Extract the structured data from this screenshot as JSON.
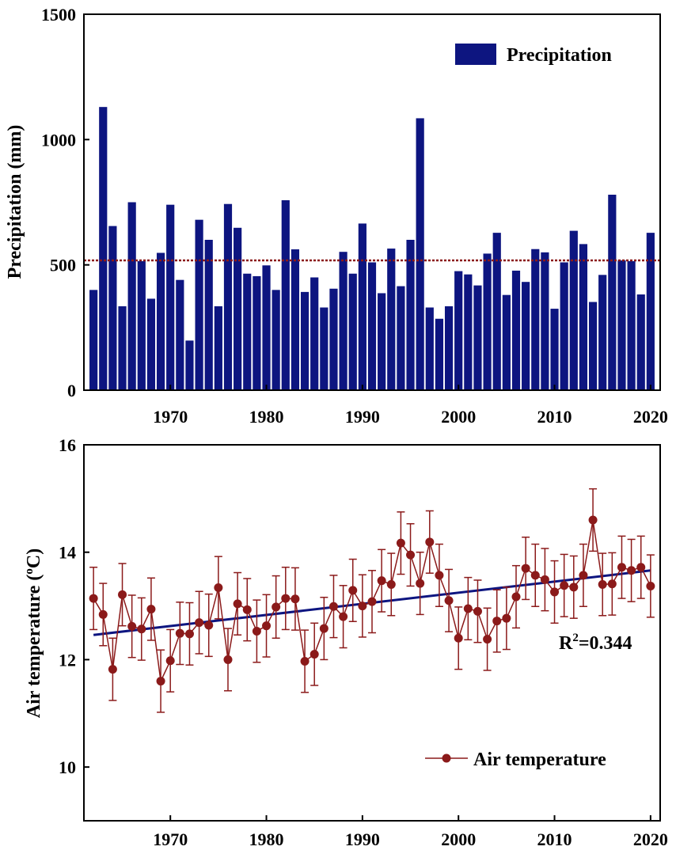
{
  "chart_data": [
    {
      "type": "bar",
      "ylabel": "Precipitation (mm)",
      "ylim": [
        0,
        1500
      ],
      "yticks": [
        "0",
        "500",
        "1000",
        "1500"
      ],
      "xticks": [
        "1970",
        "1980",
        "1990",
        "2000",
        "2010",
        "2020"
      ],
      "xlim": [
        1961,
        2021
      ],
      "legend": {
        "label": "Precipitation",
        "position": "top-right"
      },
      "mean_line": 518,
      "colors": {
        "bar": "#0d1580",
        "mean_line": "#8b1a1a"
      },
      "x": [
        1962,
        1963,
        1964,
        1965,
        1966,
        1967,
        1968,
        1969,
        1970,
        1971,
        1972,
        1973,
        1974,
        1975,
        1976,
        1977,
        1978,
        1979,
        1980,
        1981,
        1982,
        1983,
        1984,
        1985,
        1986,
        1987,
        1988,
        1989,
        1990,
        1991,
        1992,
        1993,
        1994,
        1995,
        1996,
        1997,
        1998,
        1999,
        2000,
        2001,
        2002,
        2003,
        2004,
        2005,
        2006,
        2007,
        2008,
        2009,
        2010,
        2011,
        2012,
        2013,
        2014,
        2015,
        2016,
        2017,
        2018,
        2019,
        2020
      ],
      "values": [
        400,
        1130,
        655,
        335,
        750,
        515,
        365,
        548,
        740,
        440,
        198,
        680,
        600,
        335,
        743,
        648,
        465,
        455,
        498,
        400,
        758,
        562,
        392,
        450,
        330,
        405,
        552,
        465,
        665,
        510,
        387,
        565,
        415,
        600,
        1085,
        330,
        285,
        335,
        475,
        462,
        418,
        545,
        628,
        380,
        477,
        432,
        563,
        550,
        325,
        510,
        636,
        583,
        352,
        460,
        780,
        518,
        515,
        382,
        628
      ]
    },
    {
      "type": "line",
      "ylabel": "Air temperature (°C)",
      "ylabel_main": "Air temperature ",
      "ylabel_open": "(",
      "ylabel_sup": "o",
      "ylabel_close": "C)",
      "ylim": [
        9,
        16
      ],
      "yticks": [
        "10",
        "12",
        "14",
        "16"
      ],
      "xticks": [
        "1970",
        "1980",
        "1990",
        "2000",
        "2010",
        "2020"
      ],
      "xlim": [
        1961,
        2021
      ],
      "legend": {
        "label": "Air temperature",
        "position": "bottom-right"
      },
      "annotation": {
        "prefix": "R",
        "sup": "2",
        "suffix": "=0.344"
      },
      "trend": {
        "x": [
          1962,
          2020
        ],
        "y": [
          12.46,
          13.66
        ]
      },
      "error": 0.58,
      "colors": {
        "series": "#8b1a1a",
        "trend": "#0d1580"
      },
      "x": [
        1962,
        1963,
        1964,
        1965,
        1966,
        1967,
        1968,
        1969,
        1970,
        1971,
        1972,
        1973,
        1974,
        1975,
        1976,
        1977,
        1978,
        1979,
        1980,
        1981,
        1982,
        1983,
        1984,
        1985,
        1986,
        1987,
        1988,
        1989,
        1990,
        1991,
        1992,
        1993,
        1994,
        1995,
        1996,
        1997,
        1998,
        1999,
        2000,
        2001,
        2002,
        2003,
        2004,
        2005,
        2006,
        2007,
        2008,
        2009,
        2010,
        2011,
        2012,
        2013,
        2014,
        2015,
        2016,
        2017,
        2018,
        2019,
        2020
      ],
      "y": [
        13.14,
        12.84,
        11.82,
        13.21,
        12.62,
        12.57,
        12.94,
        11.6,
        11.98,
        12.49,
        12.48,
        12.69,
        12.64,
        13.34,
        12.0,
        13.04,
        12.93,
        12.53,
        12.63,
        12.98,
        13.14,
        13.13,
        11.97,
        12.1,
        12.58,
        12.99,
        12.8,
        13.29,
        13.0,
        13.08,
        13.47,
        13.4,
        14.17,
        13.95,
        13.42,
        14.19,
        13.57,
        13.1,
        12.4,
        12.95,
        12.9,
        12.38,
        12.72,
        12.77,
        13.17,
        13.7,
        13.57,
        13.49,
        13.26,
        13.38,
        13.35,
        13.57,
        14.6,
        13.4,
        13.41,
        13.72,
        13.66,
        13.72,
        13.37
      ]
    }
  ]
}
